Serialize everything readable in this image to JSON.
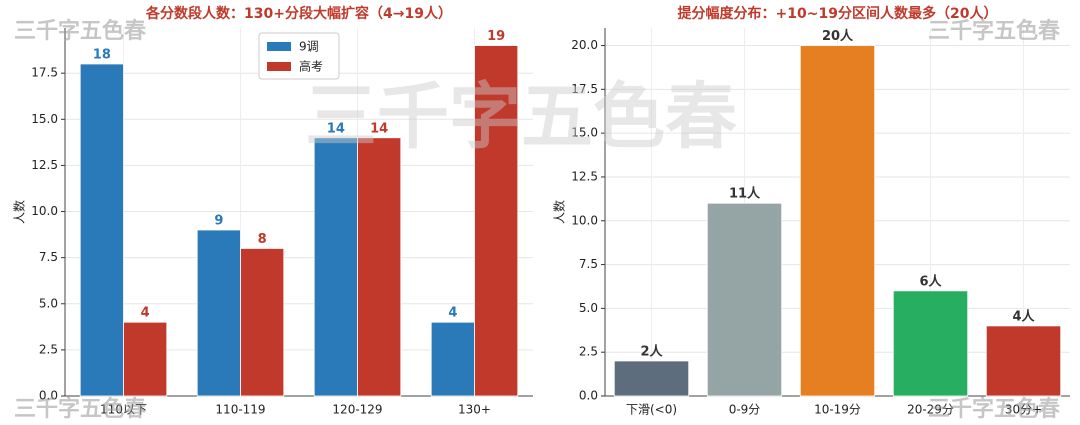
{
  "watermarks": [
    "三千字五色春",
    "三千字五色春",
    "三千字五色春",
    "三千字五色春",
    "三千字五色春"
  ],
  "chart_data": [
    {
      "type": "bar",
      "title": "各分数段人数：130+分段大幅扩容（4→19人）",
      "y_label": "人数",
      "categories": [
        "110以下",
        "110-119",
        "120-129",
        "130+"
      ],
      "series": [
        {
          "name": "9调",
          "color": "#2a7ab9",
          "values": [
            18,
            9,
            14,
            4
          ]
        },
        {
          "name": "高考",
          "color": "#c0392b",
          "values": [
            4,
            8,
            14,
            19
          ]
        }
      ],
      "ylim": [
        0,
        19.95
      ],
      "yticks": [
        {
          "value": 0,
          "label": "0.0"
        },
        2.5,
        {
          "value": 5,
          "label": "5.0"
        },
        7.5,
        {
          "value": 10,
          "label": "10.0"
        },
        12.5,
        {
          "value": 15,
          "label": "15.0"
        },
        17.5
      ],
      "grid": true,
      "legend": "upper center"
    },
    {
      "type": "bar",
      "title": "提分幅度分布：+10~19分区间人数最多（20人）",
      "y_label": "人数",
      "categories": [
        "下滑(<0)",
        "0-9分",
        "10-19分",
        "20-29分",
        "30分+"
      ],
      "values": [
        2,
        11,
        20,
        6,
        4
      ],
      "value_labels": [
        "2人",
        "11人",
        "20人",
        "6人",
        "4人"
      ],
      "colors": [
        "#5d6d7e",
        "#95a5a6",
        "#e67e22",
        "#27ae60",
        "#c0392b"
      ],
      "ylim": [
        0,
        21
      ],
      "yticks": [
        {
          "value": 0,
          "label": "0.0"
        },
        2.5,
        {
          "value": 5,
          "label": "5.0"
        },
        7.5,
        {
          "value": 10,
          "label": "10.0"
        },
        12.5,
        {
          "value": 15,
          "label": "15.0"
        },
        17.5,
        {
          "value": 20,
          "label": "20.0"
        }
      ],
      "grid": true
    }
  ]
}
